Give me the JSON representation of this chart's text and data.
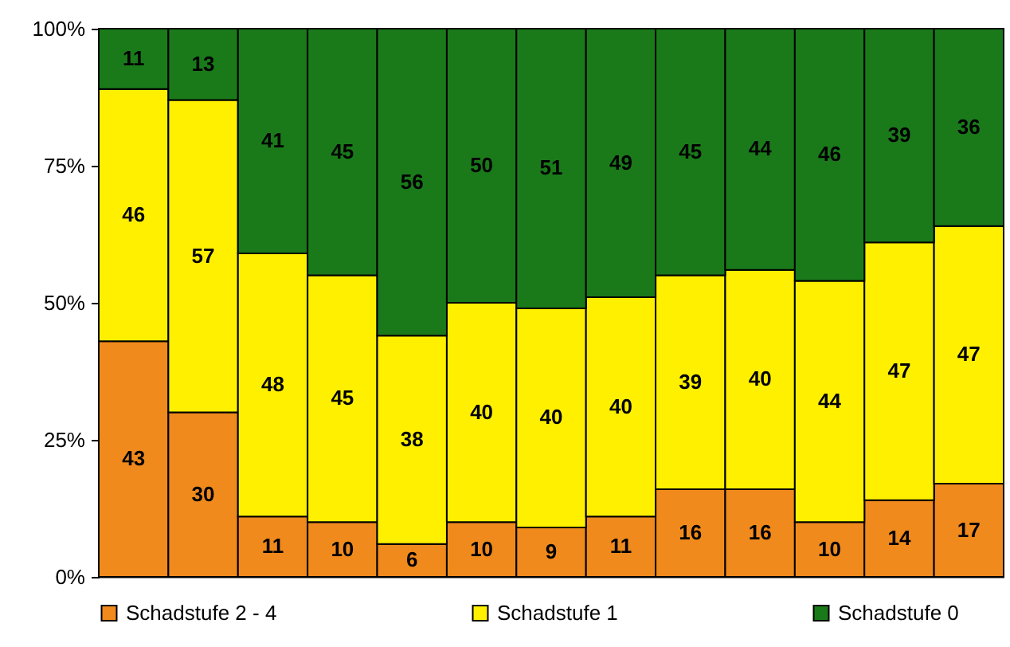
{
  "chart_data": {
    "type": "bar",
    "stacked": true,
    "categories": [
      null,
      null,
      null,
      null,
      null,
      null,
      null,
      null,
      null,
      null,
      null,
      null,
      null
    ],
    "series": [
      {
        "name": "Schadstufe 2 - 4",
        "color": "#f08a1c",
        "values": [
          43,
          30,
          11,
          10,
          6,
          10,
          9,
          11,
          16,
          16,
          10,
          14,
          17
        ]
      },
      {
        "name": "Schadstufe 1",
        "color": "#fff000",
        "values": [
          46,
          57,
          48,
          45,
          38,
          40,
          40,
          40,
          39,
          40,
          44,
          47,
          47
        ]
      },
      {
        "name": "Schadstufe 0",
        "color": "#1a7a1a",
        "values": [
          11,
          13,
          41,
          45,
          56,
          50,
          51,
          49,
          45,
          44,
          46,
          39,
          36
        ]
      }
    ],
    "ylim": [
      0,
      100
    ],
    "yticks": [
      {
        "value": 0,
        "label": "0%"
      },
      {
        "value": 25,
        "label": "25%"
      },
      {
        "value": 50,
        "label": "50%"
      },
      {
        "value": 75,
        "label": "75%"
      },
      {
        "value": 100,
        "label": "100%"
      }
    ],
    "data_labels": true,
    "legend": "bottom"
  }
}
